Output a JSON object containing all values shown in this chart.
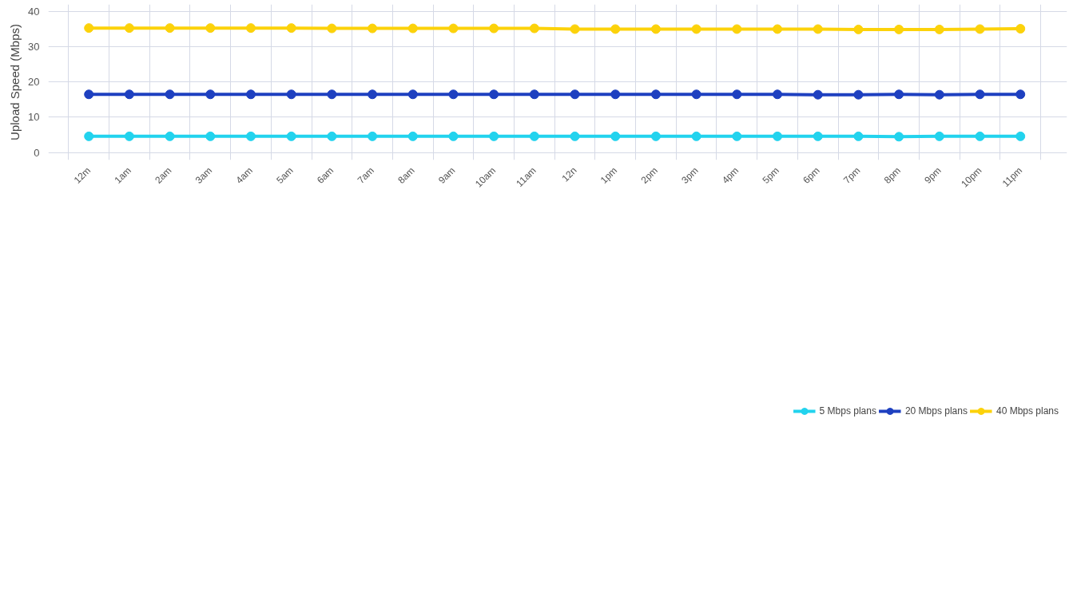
{
  "chart_data": {
    "type": "line",
    "ylabel": "Upload Speed (Mbps)",
    "categories": [
      "12m",
      "1am",
      "2am",
      "3am",
      "4am",
      "5am",
      "6am",
      "7am",
      "8am",
      "9am",
      "10am",
      "11am",
      "12n",
      "1pm",
      "2pm",
      "3pm",
      "4pm",
      "5pm",
      "6pm",
      "7pm",
      "8pm",
      "9pm",
      "10pm",
      "11pm"
    ],
    "series": [
      {
        "name": "5 Mbps plans",
        "color": "#22d3ee",
        "values": [
          4.6,
          4.6,
          4.6,
          4.6,
          4.6,
          4.6,
          4.6,
          4.6,
          4.6,
          4.6,
          4.6,
          4.6,
          4.6,
          4.6,
          4.6,
          4.6,
          4.6,
          4.6,
          4.6,
          4.6,
          4.5,
          4.6,
          4.6,
          4.6
        ]
      },
      {
        "name": "20 Mbps plans",
        "color": "#1e40c0",
        "values": [
          16.5,
          16.5,
          16.5,
          16.5,
          16.5,
          16.5,
          16.5,
          16.5,
          16.5,
          16.5,
          16.5,
          16.5,
          16.5,
          16.5,
          16.5,
          16.5,
          16.5,
          16.5,
          16.4,
          16.4,
          16.5,
          16.4,
          16.5,
          16.5
        ]
      },
      {
        "name": "40 Mbps plans",
        "color": "#fcd20a",
        "values": [
          35.3,
          35.3,
          35.3,
          35.3,
          35.3,
          35.3,
          35.2,
          35.2,
          35.2,
          35.2,
          35.2,
          35.2,
          35.0,
          35.0,
          35.0,
          35.0,
          35.0,
          35.0,
          35.0,
          34.9,
          34.9,
          34.9,
          35.0,
          35.1
        ]
      }
    ],
    "ylim": [
      -2.1,
      42
    ],
    "yticks": [
      0,
      10,
      20,
      30,
      40
    ],
    "grid": true,
    "legend": "bottom",
    "marker": "circle",
    "line_style": "solid"
  }
}
